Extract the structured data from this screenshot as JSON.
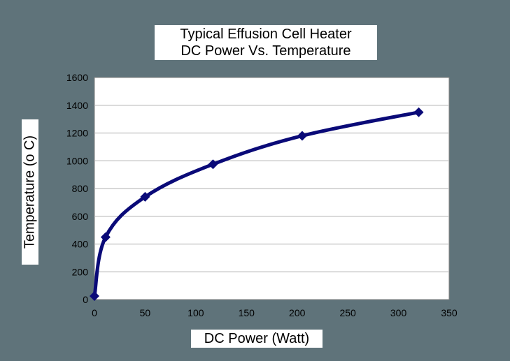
{
  "chart_data": {
    "type": "line",
    "title": "Typical Effusion Cell Heater",
    "subtitle": "DC Power Vs. Temperature",
    "xlabel": "DC Power (Watt)",
    "ylabel": "Temperature (o C)",
    "xlim": [
      0,
      350
    ],
    "ylim": [
      0,
      1600
    ],
    "xticks": [
      0,
      50,
      100,
      150,
      200,
      250,
      300,
      350
    ],
    "yticks": [
      0,
      200,
      400,
      600,
      800,
      1000,
      1200,
      1400,
      1600
    ],
    "grid": "horizontal",
    "legend": "none",
    "series": [
      {
        "points": [
          {
            "x": 0,
            "y": 25
          },
          {
            "x": 11,
            "y": 450
          },
          {
            "x": 50,
            "y": 740
          },
          {
            "x": 117,
            "y": 975
          },
          {
            "x": 205,
            "y": 1180
          },
          {
            "x": 320,
            "y": 1350
          }
        ],
        "color": "#0a0a78"
      }
    ]
  }
}
